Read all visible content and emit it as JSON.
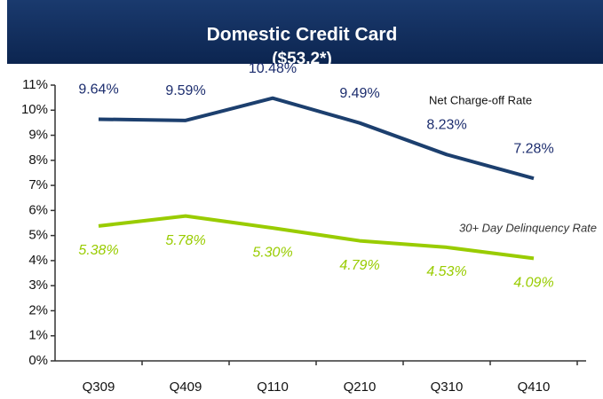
{
  "chart_data": {
    "type": "line",
    "title": "Domestic Credit Card",
    "subtitle": "($53.2*)",
    "categories": [
      "Q309",
      "Q409",
      "Q110",
      "Q210",
      "Q310",
      "Q410"
    ],
    "series": [
      {
        "name": "Net Charge-off Rate",
        "color": "#1c3f6e",
        "values": [
          9.64,
          9.59,
          10.48,
          9.49,
          8.23,
          7.28
        ],
        "value_labels": [
          "9.64%",
          "9.59%",
          "10.48%",
          "9.49%",
          "8.23%",
          "7.28%"
        ]
      },
      {
        "name": "30+ Day Delinquency Rate",
        "color": "#99cc00",
        "values": [
          5.38,
          5.78,
          5.3,
          4.79,
          4.53,
          4.09
        ],
        "value_labels": [
          "5.38%",
          "5.78%",
          "5.30%",
          "4.79%",
          "4.53%",
          "4.09%"
        ]
      }
    ],
    "ylim": [
      0,
      11
    ],
    "yticks": [
      {
        "value": 0,
        "label": "0%"
      },
      {
        "value": 1,
        "label": "1%"
      },
      {
        "value": 2,
        "label": "2%"
      },
      {
        "value": 3,
        "label": "3%"
      },
      {
        "value": 4,
        "label": "4%"
      },
      {
        "value": 5,
        "label": "5%"
      },
      {
        "value": 6,
        "label": "6%"
      },
      {
        "value": 7,
        "label": "7%"
      },
      {
        "value": 8,
        "label": "8%"
      },
      {
        "value": 9,
        "label": "9%"
      },
      {
        "value": 10,
        "label": "10%"
      },
      {
        "value": 11,
        "label": "11%"
      }
    ],
    "grid": false
  }
}
